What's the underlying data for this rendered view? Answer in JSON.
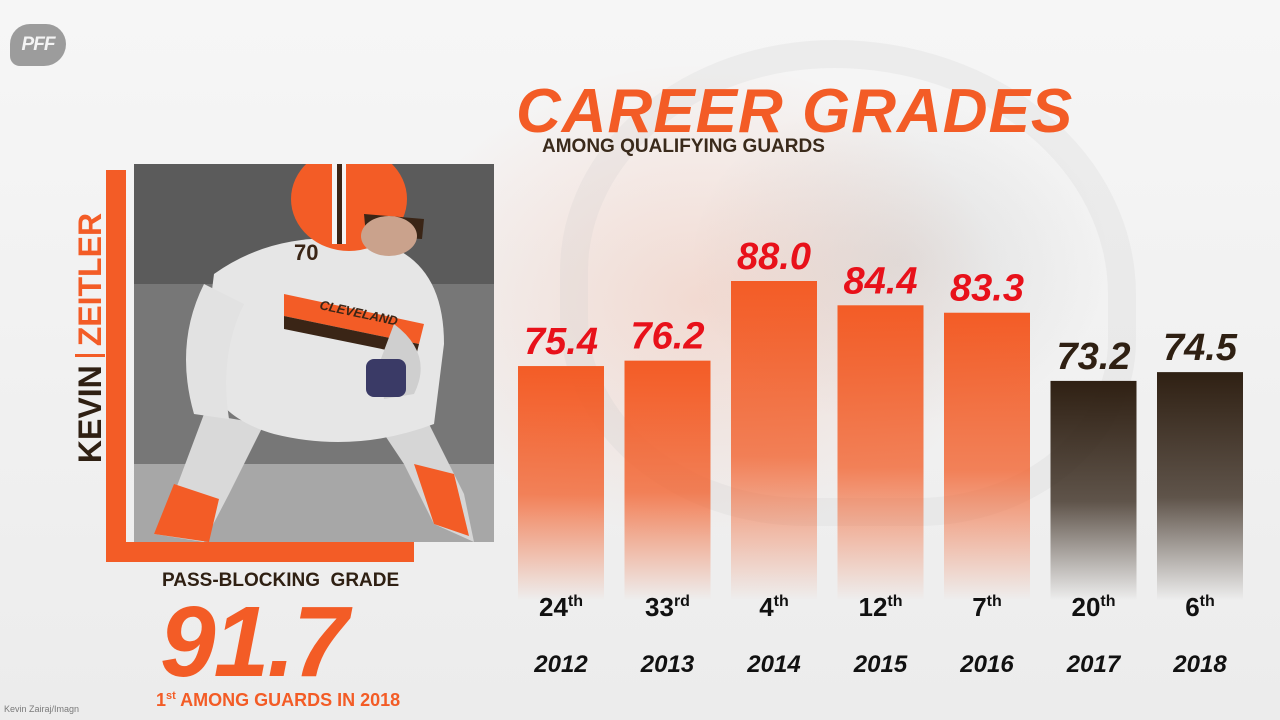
{
  "logo": "PFF",
  "player": {
    "first_name": "KEVIN",
    "last_name": "ZEITLER",
    "jersey": "70",
    "team_text": "CLEVELAND"
  },
  "stat": {
    "label": "PASS-BLOCKING  GRADE",
    "value": "91.7",
    "rank_num": "1",
    "rank_suffix": "st",
    "rank_text": " AMONG GUARDS IN 2018"
  },
  "photo_credit": "Kevin Zairaj/Imagn",
  "colors": {
    "orange": "#f35c26",
    "brown": "#2f2013",
    "value_red": "#e8111a"
  },
  "chart_data": {
    "type": "bar",
    "title": "CAREER GRADES",
    "subtitle": "AMONG QUALIFYING GUARDS",
    "categories": [
      "2012",
      "2013",
      "2014",
      "2015",
      "2016",
      "2017",
      "2018"
    ],
    "values": [
      75.4,
      76.2,
      88.0,
      84.4,
      83.3,
      73.2,
      74.5
    ],
    "value_labels": [
      "75.4",
      "76.2",
      "88.0",
      "84.4",
      "83.3",
      "73.2",
      "74.5"
    ],
    "ranks": [
      {
        "num": "24",
        "suffix": "th"
      },
      {
        "num": "33",
        "suffix": "rd"
      },
      {
        "num": "4",
        "suffix": "th"
      },
      {
        "num": "12",
        "suffix": "th"
      },
      {
        "num": "7",
        "suffix": "th"
      },
      {
        "num": "20",
        "suffix": "th"
      },
      {
        "num": "6",
        "suffix": "th"
      }
    ],
    "bar_colors": [
      "#f35c26",
      "#f35c26",
      "#f35c26",
      "#f35c26",
      "#f35c26",
      "#2f2013",
      "#2f2013"
    ],
    "label_colors": [
      "#e8111a",
      "#e8111a",
      "#e8111a",
      "#e8111a",
      "#e8111a",
      "#2f2013",
      "#2f2013"
    ],
    "xlabel": "",
    "ylabel": "",
    "grid": false
  }
}
